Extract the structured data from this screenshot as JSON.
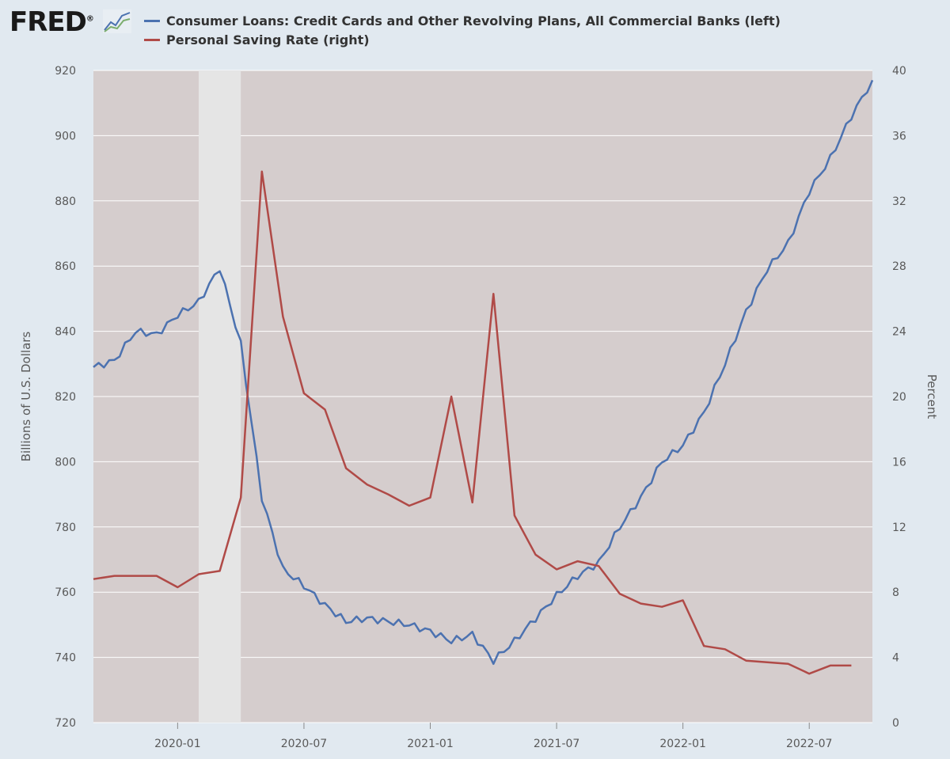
{
  "header": {
    "logo_text": "FRED",
    "logo_mark": "®"
  },
  "colors": {
    "background": "#e1e9f0",
    "plot_background": "#d5cdcd",
    "recession_shade": "#e5e5e5",
    "gridline": "#ffffff",
    "series_blue": "#4c72b0",
    "series_red": "#b04a47"
  },
  "chart_data": {
    "type": "line",
    "x_start": "2019-09",
    "x_end": "2022-10",
    "x_tick_labels": [
      "2020-01",
      "2020-07",
      "2021-01",
      "2021-07",
      "2022-01",
      "2022-07"
    ],
    "recession": [
      "2020-02",
      "2020-04"
    ],
    "grid": true,
    "legend_position": "top-left",
    "y_left": {
      "label": "Billions of U.S. Dollars",
      "range": [
        720,
        920
      ],
      "ticks": [
        720,
        740,
        760,
        780,
        800,
        820,
        840,
        860,
        880,
        900,
        920
      ]
    },
    "y_right": {
      "label": "Percent",
      "range": [
        0,
        40
      ],
      "ticks": [
        0,
        4,
        8,
        12,
        16,
        20,
        24,
        28,
        32,
        36,
        40
      ]
    },
    "series": [
      {
        "name": "Consumer Loans: Credit Cards and Other Revolving Plans, All Commercial Banks (left)",
        "axis": "left",
        "color": "#4c72b0",
        "frequency": "weekly",
        "points": [
          [
            "2019-09",
            829
          ],
          [
            "2019-10",
            831
          ],
          [
            "2019-11",
            840
          ],
          [
            "2019-12",
            839
          ],
          [
            "2020-01",
            845
          ],
          [
            "2020-02",
            849
          ],
          [
            "2020-03",
            859.5
          ],
          [
            "2020-04",
            836
          ],
          [
            "2020-05",
            789
          ],
          [
            "2020-06",
            767
          ],
          [
            "2020-07",
            762
          ],
          [
            "2020-08",
            756
          ],
          [
            "2020-09",
            751
          ],
          [
            "2020-10",
            752
          ],
          [
            "2020-11",
            751
          ],
          [
            "2020-12",
            750
          ],
          [
            "2021-01",
            748
          ],
          [
            "2021-02",
            745
          ],
          [
            "2021-03",
            747
          ],
          [
            "2021-04",
            739
          ],
          [
            "2021-05",
            745
          ],
          [
            "2021-06",
            752
          ],
          [
            "2021-07",
            759
          ],
          [
            "2021-08",
            765
          ],
          [
            "2021-09",
            769
          ],
          [
            "2021-10",
            780
          ],
          [
            "2021-11",
            789
          ],
          [
            "2021-12",
            800
          ],
          [
            "2022-01",
            805
          ],
          [
            "2022-02",
            815
          ],
          [
            "2022-03",
            830
          ],
          [
            "2022-04",
            846
          ],
          [
            "2022-05",
            859
          ],
          [
            "2022-06",
            867
          ],
          [
            "2022-07",
            883
          ],
          [
            "2022-08",
            893
          ],
          [
            "2022-09",
            906
          ],
          [
            "2022-10",
            917
          ]
        ]
      },
      {
        "name": "Personal Saving Rate (right)",
        "axis": "right",
        "color": "#b04a47",
        "frequency": "monthly",
        "points": [
          [
            "2019-09",
            8.8
          ],
          [
            "2019-10",
            9.0
          ],
          [
            "2019-11",
            9.0
          ],
          [
            "2019-12",
            9.0
          ],
          [
            "2020-01",
            8.3
          ],
          [
            "2020-02",
            9.1
          ],
          [
            "2020-03",
            9.3
          ],
          [
            "2020-04",
            13.8
          ],
          [
            "2020-05",
            33.8
          ],
          [
            "2020-06",
            24.9
          ],
          [
            "2020-07",
            20.2
          ],
          [
            "2020-08",
            19.2
          ],
          [
            "2020-09",
            15.6
          ],
          [
            "2020-10",
            14.6
          ],
          [
            "2020-11",
            14.0
          ],
          [
            "2020-12",
            13.3
          ],
          [
            "2021-01",
            13.8
          ],
          [
            "2021-02",
            20.0
          ],
          [
            "2021-03",
            13.5
          ],
          [
            "2021-04",
            26.3
          ],
          [
            "2021-05",
            12.7
          ],
          [
            "2021-06",
            10.3
          ],
          [
            "2021-07",
            9.4
          ],
          [
            "2021-08",
            9.9
          ],
          [
            "2021-09",
            9.6
          ],
          [
            "2021-10",
            7.9
          ],
          [
            "2021-11",
            7.3
          ],
          [
            "2021-12",
            7.1
          ],
          [
            "2022-01",
            7.5
          ],
          [
            "2022-02",
            4.7
          ],
          [
            "2022-03",
            4.5
          ],
          [
            "2022-04",
            3.8
          ],
          [
            "2022-05",
            3.7
          ],
          [
            "2022-06",
            3.6
          ],
          [
            "2022-07",
            3.0
          ],
          [
            "2022-08",
            3.5
          ],
          [
            "2022-09",
            3.5
          ]
        ]
      }
    ]
  }
}
